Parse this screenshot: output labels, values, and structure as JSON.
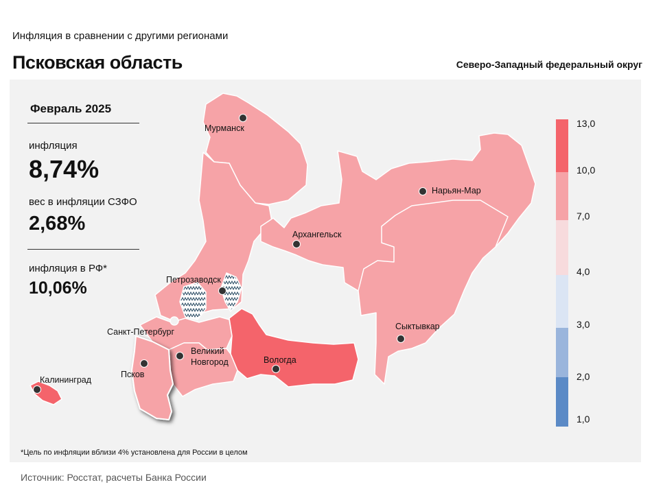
{
  "header": {
    "subtitle": "Инфляция в сравнении с другими регионами",
    "region": "Псковская область",
    "district": "Северо-Западный федеральный округ"
  },
  "stats": {
    "period": "Февраль 2025",
    "inflation_label": "инфляция",
    "inflation_value": "8,74%",
    "weight_label": "вес в инфляции СЗФО",
    "weight_value": "2,68%",
    "rf_label": "инфляция в РФ*",
    "rf_value": "10,06%"
  },
  "cities": {
    "murmansk": "Мурманск",
    "naryan_mar": "Нарьян-Мар",
    "arkhangelsk": "Архангельск",
    "petrozavodsk": "Петрозаводск",
    "spb": "Санкт-Петербург",
    "velikiy": "Великий",
    "novgorod": "Новгород",
    "vologda": "Вологда",
    "syktyvkar": "Сыктывкар",
    "pskov": "Псков",
    "kaliningrad": "Калининград"
  },
  "legend": {
    "ticks": [
      "13,0",
      "10,0",
      "7,0",
      "4,0",
      "3,0",
      "2,0",
      "1,0"
    ],
    "bins": [
      {
        "range": "10,0–13,0",
        "color": "#f4646b"
      },
      {
        "range": "7,0–10,0",
        "color": "#f6a3a7"
      },
      {
        "range": "4,0–7,0",
        "color": "#f7dbdd"
      },
      {
        "range": "3,0–4,0",
        "color": "#dbe5f4"
      },
      {
        "range": "2,0–3,0",
        "color": "#9ab5dc"
      },
      {
        "range": "1,0–2,0",
        "color": "#5b8ac6"
      }
    ]
  },
  "footnote": "*Цель по инфляции вблизи 4% установлена для России в целом",
  "source": "Источник: Росстат, расчеты Банка России"
}
